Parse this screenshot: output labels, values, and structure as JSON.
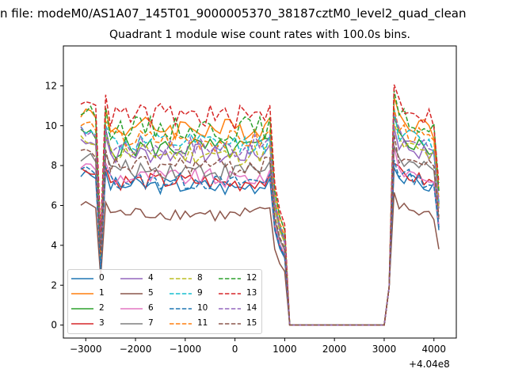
{
  "figure": {
    "suptitle": "n file: modeM0/AS1A07_145T01_9000005370_38187cztM0_level2_quad_clean",
    "title": "Quadrant 1 module wise count rates with 100.0s bins.",
    "x_offset_label": "+4.04e8"
  },
  "chart_data": {
    "type": "line",
    "title": "Quadrant 1 module wise count rates with 100.0s bins.",
    "xlabel": "",
    "ylabel": "",
    "xlim": [
      -3450,
      4450
    ],
    "ylim": [
      -0.65,
      14.0
    ],
    "x_ticks": [
      -3000,
      -2000,
      -1000,
      0,
      1000,
      2000,
      3000,
      4000
    ],
    "x_tick_labels": [
      "−3000",
      "−2000",
      "−1000",
      "0",
      "1000",
      "2000",
      "3000",
      "4000"
    ],
    "y_ticks": [
      0,
      2,
      4,
      6,
      8,
      10,
      12
    ],
    "y_tick_labels": [
      "0",
      "2",
      "4",
      "6",
      "8",
      "10",
      "12"
    ],
    "x_offset": 404000000,
    "grid": false,
    "legend": {
      "position": "lower-left",
      "columns": 4
    },
    "series": [
      {
        "name": "0",
        "color": "#1f77b4",
        "dash": "solid",
        "level": 7.0
      },
      {
        "name": "1",
        "color": "#ff7f0e",
        "dash": "solid",
        "level": 9.9
      },
      {
        "name": "2",
        "color": "#2ca02c",
        "dash": "solid",
        "level": 8.9
      },
      {
        "name": "3",
        "color": "#d62728",
        "dash": "solid",
        "level": 7.2
      },
      {
        "name": "4",
        "color": "#9467bd",
        "dash": "solid",
        "level": 8.6
      },
      {
        "name": "5",
        "color": "#8c564b",
        "dash": "solid",
        "level": 5.6
      },
      {
        "name": "6",
        "color": "#e377c2",
        "dash": "solid",
        "level": 7.4
      },
      {
        "name": "7",
        "color": "#7f7f7f",
        "dash": "solid",
        "level": 7.8
      },
      {
        "name": "8",
        "color": "#bcbd22",
        "dash": "dashed",
        "level": 8.6
      },
      {
        "name": "9",
        "color": "#17becf",
        "dash": "dashed",
        "level": 9.1
      },
      {
        "name": "10",
        "color": "#1f77b4",
        "dash": "dashed",
        "level": 7.2
      },
      {
        "name": "11",
        "color": "#ff7f0e",
        "dash": "dashed",
        "level": 9.3
      },
      {
        "name": "12",
        "color": "#2ca02c",
        "dash": "dashed",
        "level": 9.9
      },
      {
        "name": "13",
        "color": "#d62728",
        "dash": "dashed",
        "level": 10.5
      },
      {
        "name": "14",
        "color": "#9467bd",
        "dash": "dashed",
        "level": 9.0
      },
      {
        "name": "15",
        "color": "#8c564b",
        "dash": "dashed",
        "level": 8.0
      }
    ]
  }
}
